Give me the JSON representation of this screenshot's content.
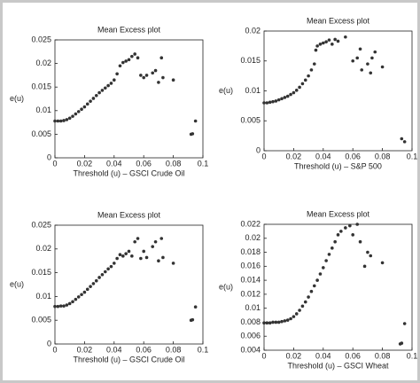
{
  "chart_data": [
    {
      "type": "scatter",
      "title": "Mean Excess plot",
      "xlabel": "Threshold (u) – GSCI Crude Oil",
      "ylabel": "e(u)",
      "color": "#333333",
      "xlim": [
        0,
        0.1
      ],
      "xticks": [
        0,
        0.02,
        0.04,
        0.06,
        0.08,
        0.1
      ],
      "ylim": [
        0,
        0.025
      ],
      "yticks": [
        0,
        0.005,
        0.01,
        0.015,
        0.02,
        0.025
      ],
      "x": [
        0,
        0.002,
        0.004,
        0.006,
        0.008,
        0.01,
        0.012,
        0.014,
        0.016,
        0.018,
        0.02,
        0.022,
        0.024,
        0.026,
        0.028,
        0.03,
        0.032,
        0.034,
        0.036,
        0.038,
        0.04,
        0.042,
        0.044,
        0.046,
        0.048,
        0.05,
        0.052,
        0.054,
        0.056,
        0.058,
        0.06,
        0.062,
        0.066,
        0.068,
        0.07,
        0.072,
        0.073,
        0.08,
        0.092,
        0.093,
        0.095
      ],
      "y": [
        0.0078,
        0.0078,
        0.0078,
        0.0079,
        0.0081,
        0.0084,
        0.0088,
        0.0093,
        0.0098,
        0.0103,
        0.0108,
        0.0114,
        0.012,
        0.0126,
        0.0132,
        0.0138,
        0.0143,
        0.0148,
        0.0153,
        0.0158,
        0.0165,
        0.0178,
        0.0195,
        0.0202,
        0.0205,
        0.0208,
        0.0215,
        0.022,
        0.0212,
        0.0175,
        0.017,
        0.0175,
        0.018,
        0.0185,
        0.016,
        0.0212,
        0.017,
        0.0165,
        0.005,
        0.0051,
        0.0078
      ]
    },
    {
      "type": "scatter",
      "title": "Mean Excess plot",
      "xlabel": "Threshold (u) – S&P 500",
      "ylabel": "e(u)",
      "color": "#333333",
      "xlim": [
        0,
        0.1
      ],
      "xticks": [
        0,
        0.02,
        0.04,
        0.06,
        0.08,
        0.1
      ],
      "ylim": [
        0,
        0.02
      ],
      "yticks": [
        0,
        0.005,
        0.01,
        0.015,
        0.02
      ],
      "x": [
        0,
        0.002,
        0.004,
        0.006,
        0.008,
        0.01,
        0.012,
        0.014,
        0.016,
        0.018,
        0.02,
        0.022,
        0.024,
        0.026,
        0.028,
        0.03,
        0.032,
        0.034,
        0.035,
        0.036,
        0.038,
        0.04,
        0.042,
        0.044,
        0.046,
        0.048,
        0.05,
        0.055,
        0.06,
        0.063,
        0.065,
        0.066,
        0.07,
        0.072,
        0.073,
        0.075,
        0.08,
        0.093,
        0.095
      ],
      "y": [
        0.008,
        0.008,
        0.0081,
        0.0082,
        0.0083,
        0.0085,
        0.0087,
        0.0089,
        0.0091,
        0.0094,
        0.0097,
        0.0101,
        0.0106,
        0.0112,
        0.0118,
        0.0125,
        0.0135,
        0.0145,
        0.0168,
        0.0175,
        0.0178,
        0.018,
        0.0182,
        0.0185,
        0.0178,
        0.0186,
        0.0183,
        0.019,
        0.015,
        0.0155,
        0.017,
        0.0135,
        0.0145,
        0.013,
        0.0155,
        0.0165,
        0.014,
        0.002,
        0.0015
      ]
    },
    {
      "type": "scatter",
      "title": "Mean Excess plot",
      "xlabel": "Threshold (u) – GSCI Crude Oil",
      "ylabel": "e(u)",
      "color": "#333333",
      "xlim": [
        0,
        0.1
      ],
      "xticks": [
        0,
        0.02,
        0.04,
        0.06,
        0.08,
        0.1
      ],
      "ylim": [
        0,
        0.025
      ],
      "yticks": [
        0,
        0.005,
        0.01,
        0.015,
        0.02,
        0.025
      ],
      "x": [
        0,
        0.002,
        0.004,
        0.006,
        0.008,
        0.01,
        0.012,
        0.014,
        0.016,
        0.018,
        0.02,
        0.022,
        0.024,
        0.026,
        0.028,
        0.03,
        0.032,
        0.034,
        0.036,
        0.038,
        0.04,
        0.042,
        0.044,
        0.046,
        0.048,
        0.05,
        0.052,
        0.054,
        0.056,
        0.058,
        0.06,
        0.062,
        0.066,
        0.068,
        0.07,
        0.072,
        0.073,
        0.08,
        0.092,
        0.093,
        0.095
      ],
      "y": [
        0.0079,
        0.0079,
        0.008,
        0.008,
        0.0082,
        0.0085,
        0.0089,
        0.0094,
        0.0099,
        0.0104,
        0.0109,
        0.0115,
        0.0121,
        0.0127,
        0.0133,
        0.014,
        0.0146,
        0.0152,
        0.0158,
        0.0163,
        0.017,
        0.018,
        0.0188,
        0.0185,
        0.019,
        0.0195,
        0.0185,
        0.0215,
        0.0222,
        0.018,
        0.0195,
        0.0182,
        0.0205,
        0.0215,
        0.0175,
        0.0222,
        0.0182,
        0.017,
        0.005,
        0.0051,
        0.0078
      ]
    },
    {
      "type": "scatter",
      "title": "Mean Excess plot",
      "xlabel": "Threshold (u) – GSCI Wheat",
      "ylabel": "e(u)",
      "color": "#333333",
      "xlim": [
        0,
        0.1
      ],
      "xticks": [
        0,
        0.02,
        0.04,
        0.06,
        0.08,
        0.1
      ],
      "ylim": [
        0.004,
        0.022
      ],
      "yticks": [
        0.004,
        0.006,
        0.008,
        0.01,
        0.012,
        0.014,
        0.016,
        0.018,
        0.02,
        0.022
      ],
      "x": [
        0,
        0.002,
        0.004,
        0.006,
        0.008,
        0.01,
        0.012,
        0.014,
        0.016,
        0.018,
        0.02,
        0.022,
        0.024,
        0.026,
        0.028,
        0.03,
        0.032,
        0.034,
        0.036,
        0.038,
        0.04,
        0.042,
        0.044,
        0.046,
        0.048,
        0.05,
        0.052,
        0.055,
        0.058,
        0.06,
        0.063,
        0.065,
        0.068,
        0.07,
        0.072,
        0.08,
        0.092,
        0.093,
        0.095
      ],
      "y": [
        0.0079,
        0.0079,
        0.0079,
        0.008,
        0.008,
        0.008,
        0.0081,
        0.0082,
        0.0083,
        0.0085,
        0.0088,
        0.0092,
        0.0097,
        0.0103,
        0.0109,
        0.0116,
        0.0124,
        0.0132,
        0.014,
        0.0149,
        0.0158,
        0.0168,
        0.0177,
        0.0186,
        0.0195,
        0.0205,
        0.021,
        0.0215,
        0.0218,
        0.0205,
        0.022,
        0.0195,
        0.016,
        0.018,
        0.0175,
        0.0165,
        0.0049,
        0.005,
        0.0078
      ]
    }
  ]
}
